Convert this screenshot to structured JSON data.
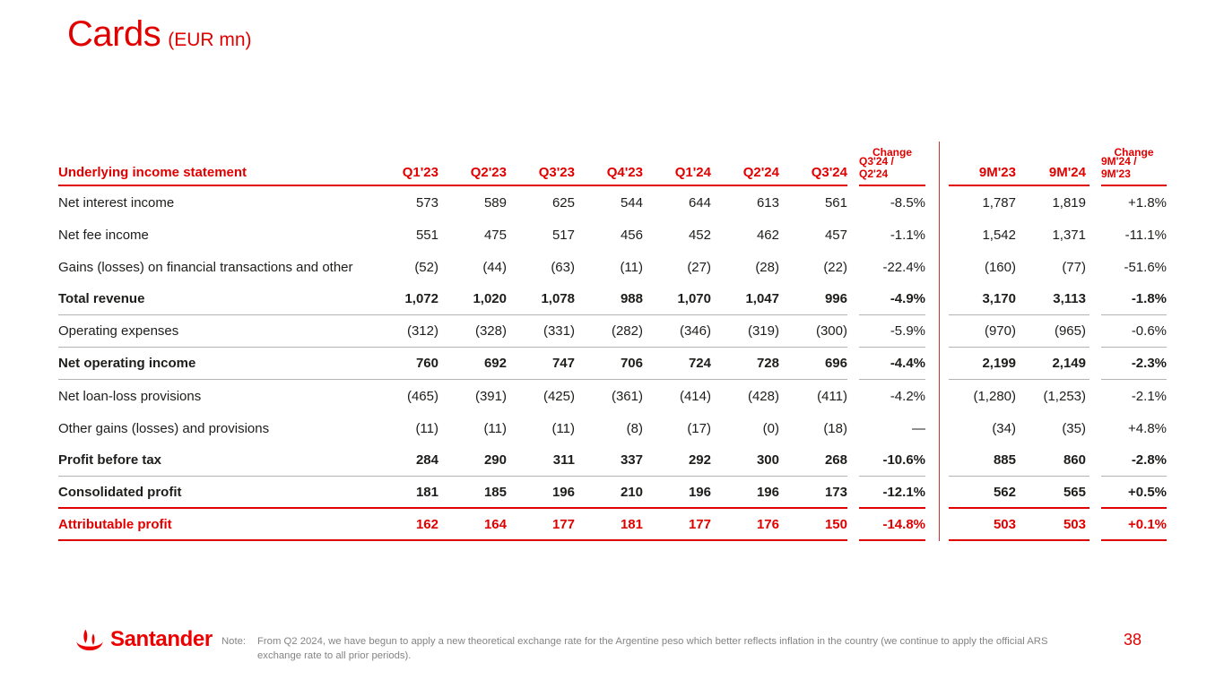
{
  "title": {
    "main": "Cards",
    "suffix": "(EUR mn)"
  },
  "table": {
    "header": {
      "label": "Underlying income statement",
      "quarter_cols": [
        "Q1'23",
        "Q2'23",
        "Q3'23",
        "Q4'23",
        "Q1'24",
        "Q2'24",
        "Q3'24"
      ],
      "change_q": {
        "top": "Change",
        "bottom": "Q3'24 / Q2'24"
      },
      "nine_month_cols": [
        "9M'23",
        "9M'24"
      ],
      "change_9m": {
        "top": "Change",
        "bottom": "9M'24 / 9M'23"
      }
    },
    "rows": [
      {
        "label": "Net interest income",
        "values": [
          "573",
          "589",
          "625",
          "544",
          "644",
          "613",
          "561"
        ],
        "change_q": "-8.5%",
        "nm": [
          "1,787",
          "1,819"
        ],
        "change_9m": "+1.8%",
        "bold": false,
        "red": false,
        "rule_below": "none"
      },
      {
        "label": "Net fee income",
        "values": [
          "551",
          "475",
          "517",
          "456",
          "452",
          "462",
          "457"
        ],
        "change_q": "-1.1%",
        "nm": [
          "1,542",
          "1,371"
        ],
        "change_9m": "-11.1%",
        "bold": false,
        "red": false,
        "rule_below": "none"
      },
      {
        "label": "Gains (losses) on financial transactions and other",
        "values": [
          "(52)",
          "(44)",
          "(63)",
          "(11)",
          "(27)",
          "(28)",
          "(22)"
        ],
        "change_q": "-22.4%",
        "nm": [
          "(160)",
          "(77)"
        ],
        "change_9m": "-51.6%",
        "bold": false,
        "red": false,
        "rule_below": "none"
      },
      {
        "label": "Total revenue",
        "values": [
          "1,072",
          "1,020",
          "1,078",
          "988",
          "1,070",
          "1,047",
          "996"
        ],
        "change_q": "-4.9%",
        "nm": [
          "3,170",
          "3,113"
        ],
        "change_9m": "-1.8%",
        "bold": true,
        "red": false,
        "rule_below": "gray"
      },
      {
        "label": "Operating expenses",
        "values": [
          "(312)",
          "(328)",
          "(331)",
          "(282)",
          "(346)",
          "(319)",
          "(300)"
        ],
        "change_q": "-5.9%",
        "nm": [
          "(970)",
          "(965)"
        ],
        "change_9m": "-0.6%",
        "bold": false,
        "red": false,
        "rule_below": "gray"
      },
      {
        "label": "Net operating income",
        "values": [
          "760",
          "692",
          "747",
          "706",
          "724",
          "728",
          "696"
        ],
        "change_q": "-4.4%",
        "nm": [
          "2,199",
          "2,149"
        ],
        "change_9m": "-2.3%",
        "bold": true,
        "red": false,
        "rule_below": "gray"
      },
      {
        "label": "Net loan-loss provisions",
        "values": [
          "(465)",
          "(391)",
          "(425)",
          "(361)",
          "(414)",
          "(428)",
          "(411)"
        ],
        "change_q": "-4.2%",
        "nm": [
          "(1,280)",
          "(1,253)"
        ],
        "change_9m": "-2.1%",
        "bold": false,
        "red": false,
        "rule_below": "none"
      },
      {
        "label": "Other gains (losses) and provisions",
        "values": [
          "(11)",
          "(11)",
          "(11)",
          "(8)",
          "(17)",
          "(0)",
          "(18)"
        ],
        "change_q": "—",
        "nm": [
          "(34)",
          "(35)"
        ],
        "change_9m": "+4.8%",
        "bold": false,
        "red": false,
        "rule_below": "none"
      },
      {
        "label": "Profit before tax",
        "values": [
          "284",
          "290",
          "311",
          "337",
          "292",
          "300",
          "268"
        ],
        "change_q": "-10.6%",
        "nm": [
          "885",
          "860"
        ],
        "change_9m": "-2.8%",
        "bold": true,
        "red": false,
        "rule_below": "gray"
      },
      {
        "label": "Consolidated profit",
        "values": [
          "181",
          "185",
          "196",
          "210",
          "196",
          "196",
          "173"
        ],
        "change_q": "-12.1%",
        "nm": [
          "562",
          "565"
        ],
        "change_9m": "+0.5%",
        "bold": true,
        "red": false,
        "rule_below": "red"
      },
      {
        "label": "Attributable profit",
        "values": [
          "162",
          "164",
          "177",
          "181",
          "177",
          "176",
          "150"
        ],
        "change_q": "-14.8%",
        "nm": [
          "503",
          "503"
        ],
        "change_9m": "+0.1%",
        "bold": true,
        "red": true,
        "rule_below": "red"
      }
    ]
  },
  "footer": {
    "logo_text": "Santander",
    "note_label": "Note:",
    "note_text": "From Q2 2024, we have begun to apply a new theoretical exchange rate for the Argentine peso which better reflects inflation in the country (we continue to apply the official ARS exchange rate to all prior periods).",
    "page_number": "38"
  },
  "colors": {
    "brand_red": "#ec0000",
    "header_red": "#e10000",
    "text_dark": "#1d1d1b",
    "rule_gray": "#b3b3b3",
    "divider_red": "#c9342e",
    "note_gray": "#848484"
  }
}
